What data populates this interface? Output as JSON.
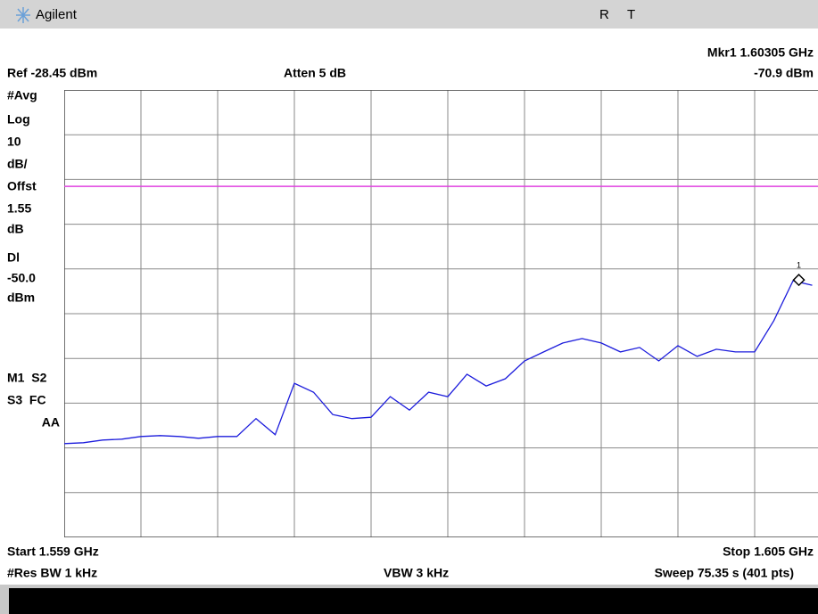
{
  "header": {
    "brand": "Agilent",
    "status": [
      "R",
      "T"
    ]
  },
  "labels": {
    "marker": "Mkr1 1.60305 GHz",
    "ref": "Ref -28.45 dBm",
    "atten": "Atten 5 dB",
    "marker_level": "-70.9 dBm",
    "left": [
      "#Avg",
      "Log",
      "10",
      "dB/",
      "Offst",
      "1.55",
      "dB",
      "Dl",
      "-50.0",
      "dBm",
      "M1  S2",
      "S3  FC",
      "AA"
    ],
    "start": "Start 1.559 GHz",
    "stop": "Stop 1.605 GHz",
    "res_bw": "#Res BW 1 kHz",
    "vbw": "VBW 3 kHz",
    "sweep": "Sweep 75.35 s (401 pts)",
    "marker_number": "1"
  },
  "chart_data": {
    "type": "line",
    "color": "#1c1cdc",
    "display_line": -50.0,
    "display_line_color": "#e040e0",
    "marker_x": 1.60305,
    "marker_y": -70.9,
    "xlim": [
      1.559,
      1.605
    ],
    "ylim": [
      -128.45,
      -28.45
    ],
    "xticks": [
      1.559,
      1.5636,
      1.5682,
      1.5728,
      1.5774,
      1.582,
      1.5866,
      1.5912,
      1.5958,
      1.6004,
      1.605
    ],
    "yticks": [
      -28.45,
      -38.45,
      -48.45,
      -58.45,
      -68.45,
      -78.45,
      -88.45,
      -98.45,
      -108.45,
      -118.45,
      -128.45
    ],
    "grid": true,
    "x": [
      1.559,
      1.56015,
      1.5613,
      1.56245,
      1.5636,
      1.56475,
      1.5659,
      1.56705,
      1.5682,
      1.56935,
      1.5705,
      1.57165,
      1.5728,
      1.57395,
      1.5751,
      1.57625,
      1.5774,
      1.57855,
      1.5797,
      1.58085,
      1.582,
      1.58315,
      1.5843,
      1.58545,
      1.5866,
      1.58775,
      1.5889,
      1.59005,
      1.5912,
      1.59235,
      1.5935,
      1.59465,
      1.5958,
      1.59695,
      1.5981,
      1.59925,
      1.6004,
      1.60155,
      1.6027,
      1.60385
    ],
    "values": [
      -107.5,
      -107.3,
      -106.7,
      -106.5,
      -105.9,
      -105.7,
      -105.9,
      -106.3,
      -105.9,
      -105.9,
      -101.9,
      -105.5,
      -94.0,
      -96.0,
      -101.0,
      -101.9,
      -101.6,
      -97.0,
      -100.0,
      -96.0,
      -97.0,
      -92.0,
      -94.6,
      -93.0,
      -89.0,
      -87.0,
      -85.0,
      -84.0,
      -85.0,
      -87.0,
      -86.0,
      -89.0,
      -85.6,
      -88.0,
      -86.4,
      -87.0,
      -87.0,
      -80.0,
      -71.1,
      -72.1
    ]
  }
}
